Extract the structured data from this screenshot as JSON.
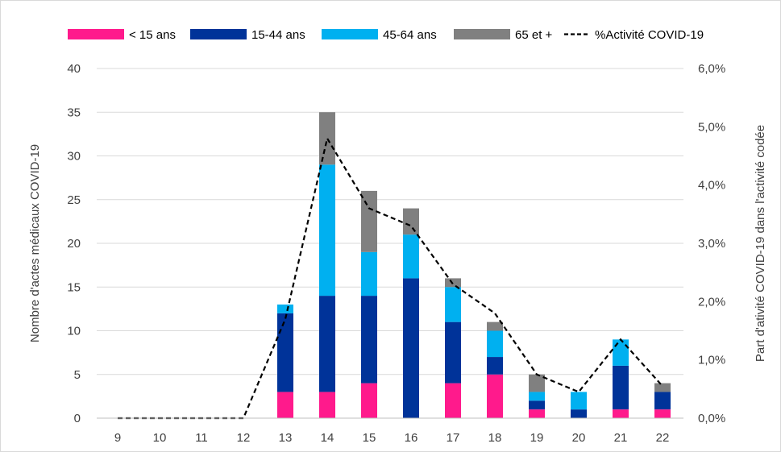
{
  "chart_data": {
    "type": "bar",
    "stacked": true,
    "categories": [
      "9",
      "10",
      "11",
      "12",
      "13",
      "14",
      "15",
      "16",
      "17",
      "18",
      "19",
      "20",
      "21",
      "22"
    ],
    "series": [
      {
        "name": "< 15 ans",
        "color": "#FF1A8C",
        "values": [
          0,
          0,
          0,
          0,
          3,
          3,
          4,
          0,
          4,
          5,
          1,
          0,
          1,
          1
        ]
      },
      {
        "name": "15-44 ans",
        "color": "#003399",
        "values": [
          0,
          0,
          0,
          0,
          9,
          11,
          10,
          16,
          7,
          2,
          1,
          1,
          5,
          2
        ]
      },
      {
        "name": "45-64 ans",
        "color": "#00B0F0",
        "values": [
          0,
          0,
          0,
          0,
          1,
          15,
          5,
          5,
          4,
          3,
          1,
          2,
          3,
          0
        ]
      },
      {
        "name": "65 et +",
        "color": "#808080",
        "values": [
          0,
          0,
          0,
          0,
          0,
          6,
          7,
          3,
          1,
          1,
          2,
          0,
          0,
          1
        ]
      }
    ],
    "line_series": {
      "name": "%Activité COVID-19",
      "axis": "right",
      "color": "#000000",
      "style": "dashed",
      "values": [
        0.0,
        0.0,
        0.0,
        0.0,
        1.7,
        4.8,
        3.6,
        3.3,
        2.3,
        1.8,
        0.75,
        0.45,
        1.35,
        0.55
      ]
    },
    "ylabel": "Nombre d'actes médicaux COVID-19",
    "y2label": "Part d'ativité COVID-19 dans l'activité codée",
    "ylim": [
      0,
      40
    ],
    "yticks": [
      "0",
      "5",
      "10",
      "15",
      "20",
      "25",
      "30",
      "35",
      "40"
    ],
    "y2lim": [
      0,
      6
    ],
    "y2ticks": [
      "0,0%",
      "1,0%",
      "2,0%",
      "3,0%",
      "4,0%",
      "5,0%",
      "6,0%"
    ],
    "grid": true,
    "legend_position": "top"
  }
}
